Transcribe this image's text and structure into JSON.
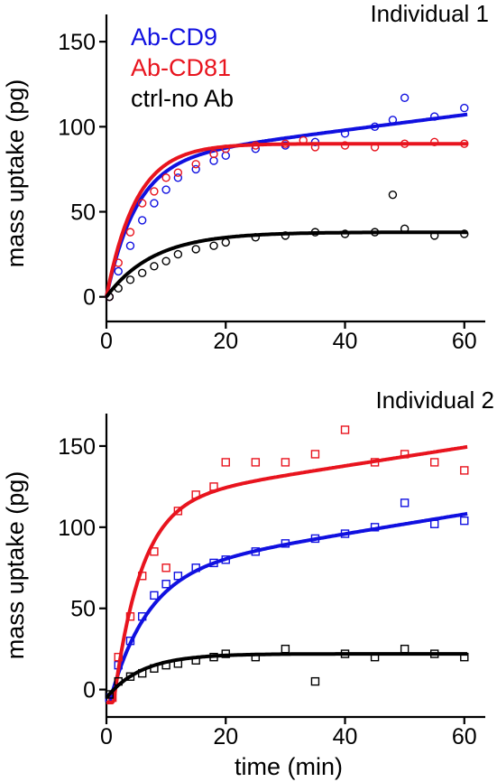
{
  "legend": [
    {
      "label": "Ab-CD9",
      "color": "#1010e0"
    },
    {
      "label": "Ab-CD81",
      "color": "#e8141e"
    },
    {
      "label": "ctrl-no Ab",
      "color": "#000000"
    }
  ],
  "chart_data": [
    {
      "type": "scatter",
      "title": "Individual 1",
      "xlabel": "",
      "ylabel": "mass uptake (pg)",
      "xlim": [
        0,
        62
      ],
      "ylim": [
        -6,
        166
      ],
      "xticks": [
        "0",
        "20",
        "40",
        "60"
      ],
      "yticks": [
        "0",
        "50",
        "100",
        "150"
      ],
      "marker": "circle",
      "legend_placement": "top-left",
      "grid": false,
      "series": [
        {
          "name": "Ab-CD9",
          "color": "#1010e0",
          "fit": {
            "model": "A*(1-exp(-t/tau)) + k*t",
            "A": 80,
            "tau": 5,
            "k": 0.45
          },
          "x": [
            0.5,
            2,
            4,
            6,
            8,
            10,
            12,
            15,
            18,
            20,
            25,
            30,
            35,
            40,
            45,
            48,
            50,
            55,
            60
          ],
          "y": [
            0,
            15,
            30,
            45,
            55,
            63,
            70,
            75,
            80,
            83,
            87,
            89,
            91,
            96,
            100,
            104,
            117,
            106,
            111
          ]
        },
        {
          "name": "Ab-CD81",
          "color": "#e8141e",
          "fit": {
            "model": "A*(1-exp(-t/tau))",
            "A": 90,
            "tau": 5
          },
          "x": [
            0.5,
            2,
            4,
            6,
            8,
            10,
            12,
            15,
            18,
            20,
            25,
            30,
            33,
            35,
            40,
            45,
            50,
            55,
            60
          ],
          "y": [
            0,
            20,
            38,
            55,
            62,
            70,
            73,
            78,
            84,
            87,
            89,
            90,
            92,
            88,
            89,
            88,
            90,
            91,
            90
          ]
        },
        {
          "name": "ctrl-no Ab",
          "color": "#000000",
          "fit": {
            "model": "A*(1-exp(-t/tau))",
            "A": 38,
            "tau": 8
          },
          "x": [
            0.5,
            2,
            4,
            6,
            8,
            10,
            12,
            15,
            18,
            20,
            25,
            30,
            35,
            40,
            45,
            48,
            50,
            55,
            60
          ],
          "y": [
            0,
            5,
            10,
            14,
            18,
            21,
            25,
            28,
            30,
            32,
            35,
            36,
            38,
            37,
            38,
            60,
            40,
            36,
            37
          ]
        }
      ]
    },
    {
      "type": "scatter",
      "title": "Individual 2",
      "xlabel": "time  (min)",
      "ylabel": "mass uptake (pg)",
      "xlim": [
        0,
        62
      ],
      "ylim": [
        -8,
        170
      ],
      "xticks": [
        "0",
        "20",
        "40",
        "60"
      ],
      "yticks": [
        "0",
        "50",
        "100",
        "150"
      ],
      "marker": "square",
      "grid": false,
      "series": [
        {
          "name": "Ab-CD9",
          "color": "#1010e0",
          "fit": {
            "model": "a + (A + k*t - a)*(1-exp(-(t-t0)/tau))",
            "a": -8,
            "t0": 0.5,
            "A": 72,
            "tau": 6,
            "k": 0.6
          },
          "x": [
            0.5,
            2,
            4,
            6,
            8,
            10,
            12,
            15,
            18,
            20,
            25,
            30,
            35,
            40,
            45,
            50,
            55,
            60
          ],
          "y": [
            -5,
            15,
            30,
            45,
            58,
            65,
            70,
            75,
            78,
            80,
            85,
            90,
            93,
            96,
            100,
            115,
            102,
            104
          ]
        },
        {
          "name": "Ab-CD81",
          "color": "#e8141e",
          "fit": {
            "model": "a + (A + k*t - a)*(1-exp(-(t-t0)/tau))",
            "a": -8,
            "t0": 1.2,
            "A": 115,
            "tau": 4.5,
            "k": 0.57
          },
          "x": [
            1,
            2,
            4,
            6,
            8,
            10,
            12,
            15,
            18,
            20,
            25,
            30,
            35,
            40,
            45,
            50,
            55,
            60
          ],
          "y": [
            -5,
            20,
            45,
            70,
            85,
            75,
            110,
            120,
            125,
            140,
            140,
            140,
            145,
            160,
            140,
            145,
            140,
            135
          ]
        },
        {
          "name": "ctrl-no Ab",
          "color": "#000000",
          "fit": {
            "model": "a + (A - a)*(1-exp(-t/tau))",
            "a": -5,
            "A": 22,
            "tau": 6
          },
          "x": [
            0.5,
            2,
            4,
            6,
            8,
            10,
            12,
            15,
            18,
            20,
            25,
            30,
            35,
            40,
            45,
            50,
            55,
            60
          ],
          "y": [
            -3,
            5,
            8,
            10,
            13,
            15,
            16,
            18,
            20,
            22,
            20,
            25,
            5,
            22,
            20,
            25,
            22,
            20
          ]
        }
      ]
    }
  ]
}
